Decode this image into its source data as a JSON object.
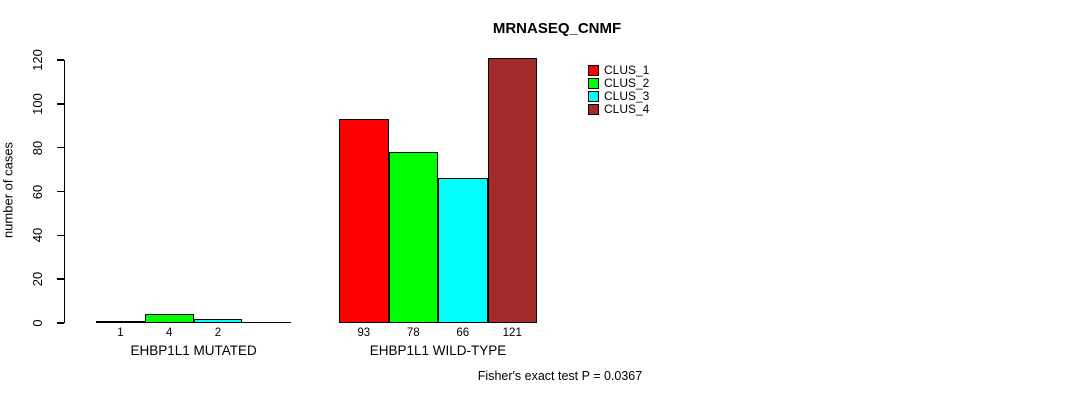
{
  "chart_data": {
    "type": "bar",
    "title": "MRNASEQ_CNMF",
    "ylabel": "number of cases",
    "xlabel": "",
    "ylim": [
      0,
      120
    ],
    "yticks": [
      0,
      20,
      40,
      60,
      80,
      100,
      120
    ],
    "grid": false,
    "legend_position": "top-right",
    "categories": [
      "EHBP1L1 MUTATED",
      "EHBP1L1 WILD-TYPE"
    ],
    "series": [
      {
        "name": "CLUS_1",
        "color": "#ff0000",
        "values": [
          1,
          93
        ]
      },
      {
        "name": "CLUS_2",
        "color": "#00ff00",
        "values": [
          4,
          78
        ]
      },
      {
        "name": "CLUS_3",
        "color": "#00ffff",
        "values": [
          2,
          66
        ]
      },
      {
        "name": "CLUS_4",
        "color": "#a52a2a",
        "values": [
          0,
          121
        ]
      }
    ],
    "bar_value_labels": [
      [
        "1",
        "4",
        "2",
        ""
      ],
      [
        "93",
        "78",
        "66",
        "121"
      ]
    ],
    "bar_border_color": "#000000",
    "axis_color": "#000000",
    "annotation": "Fisher's exact test P = 0.0367"
  }
}
